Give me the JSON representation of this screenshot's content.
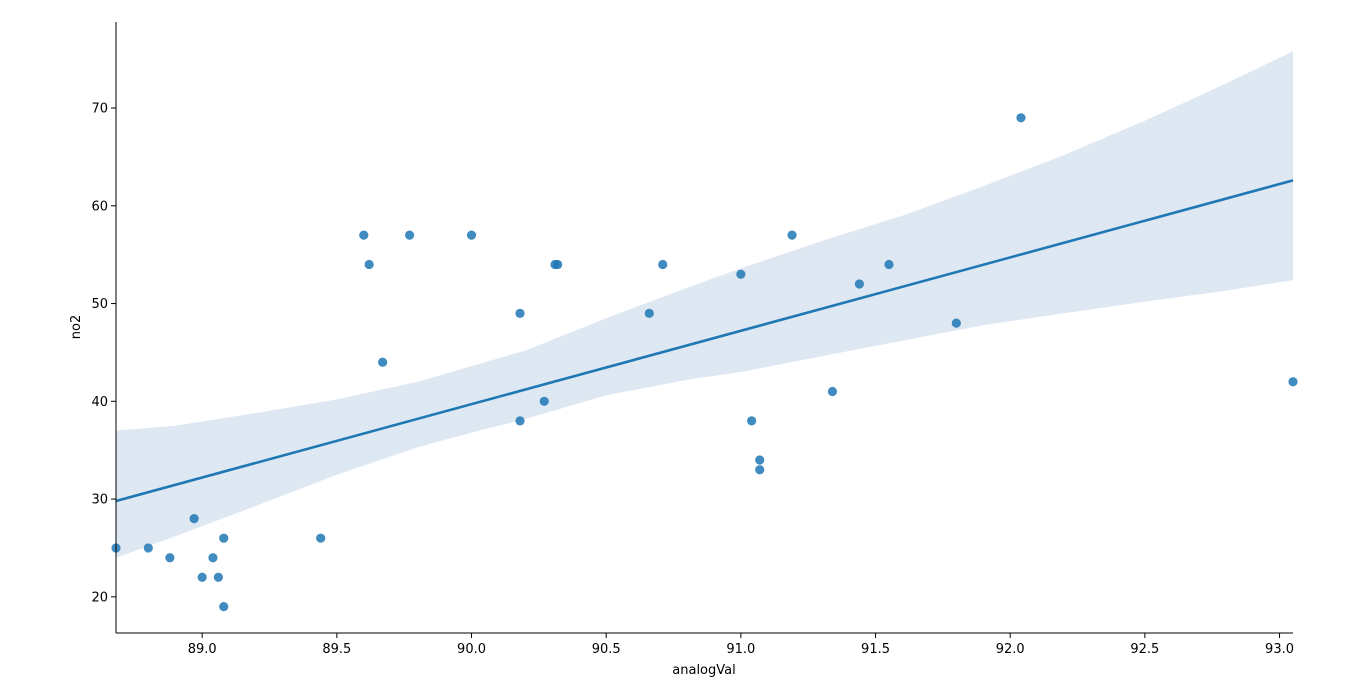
{
  "chart_data": {
    "type": "scatter",
    "title": "",
    "xlabel": "analogVal",
    "ylabel": "no2",
    "xlim": [
      88.68,
      93.05
    ],
    "ylim": [
      16.3,
      78.8
    ],
    "x_ticks": [
      "89.0",
      "89.5",
      "90.0",
      "90.5",
      "91.0",
      "91.5",
      "92.0",
      "92.5",
      "93.0"
    ],
    "x_tick_values": [
      89.0,
      89.5,
      90.0,
      90.5,
      91.0,
      91.5,
      92.0,
      92.5,
      93.0
    ],
    "y_ticks": [
      "20",
      "30",
      "40",
      "50",
      "60",
      "70"
    ],
    "y_tick_values": [
      20,
      30,
      40,
      50,
      60,
      70
    ],
    "grid": false,
    "colors": {
      "points": "#1f77b4",
      "line": "#1f77b4",
      "band": "#dde8f3"
    },
    "points": [
      {
        "x": 88.68,
        "y": 25
      },
      {
        "x": 88.8,
        "y": 25
      },
      {
        "x": 88.88,
        "y": 24
      },
      {
        "x": 88.97,
        "y": 28
      },
      {
        "x": 89.0,
        "y": 22
      },
      {
        "x": 89.04,
        "y": 24
      },
      {
        "x": 89.06,
        "y": 22
      },
      {
        "x": 89.08,
        "y": 19
      },
      {
        "x": 89.08,
        "y": 26
      },
      {
        "x": 89.44,
        "y": 26
      },
      {
        "x": 89.6,
        "y": 57
      },
      {
        "x": 89.62,
        "y": 54
      },
      {
        "x": 89.67,
        "y": 44
      },
      {
        "x": 89.77,
        "y": 57
      },
      {
        "x": 90.0,
        "y": 57
      },
      {
        "x": 90.18,
        "y": 49
      },
      {
        "x": 90.18,
        "y": 38
      },
      {
        "x": 90.27,
        "y": 40
      },
      {
        "x": 90.31,
        "y": 54
      },
      {
        "x": 90.32,
        "y": 54
      },
      {
        "x": 90.66,
        "y": 49
      },
      {
        "x": 90.71,
        "y": 54
      },
      {
        "x": 91.0,
        "y": 53
      },
      {
        "x": 91.04,
        "y": 38
      },
      {
        "x": 91.07,
        "y": 33
      },
      {
        "x": 91.07,
        "y": 34
      },
      {
        "x": 91.19,
        "y": 57
      },
      {
        "x": 91.34,
        "y": 41
      },
      {
        "x": 91.44,
        "y": 52
      },
      {
        "x": 91.55,
        "y": 54
      },
      {
        "x": 91.8,
        "y": 48
      },
      {
        "x": 92.04,
        "y": 69
      },
      {
        "x": 93.05,
        "y": 42
      }
    ],
    "regression": {
      "x": [
        88.68,
        93.05
      ],
      "y": [
        29.8,
        62.6
      ]
    },
    "confidence_band": {
      "x": [
        88.68,
        88.9,
        89.2,
        89.5,
        89.8,
        90.0,
        90.2,
        90.5,
        90.8,
        91.0,
        91.3,
        91.6,
        91.9,
        92.2,
        92.5,
        92.8,
        93.05
      ],
      "upper": [
        37.0,
        37.5,
        38.8,
        40.2,
        42.0,
        43.6,
        45.2,
        48.5,
        51.6,
        53.6,
        56.4,
        59.0,
        62.0,
        65.2,
        68.7,
        72.5,
        75.8
      ],
      "lower": [
        24.0,
        26.2,
        29.3,
        32.5,
        35.3,
        36.8,
        38.2,
        40.6,
        42.2,
        43.0,
        44.6,
        46.2,
        47.8,
        49.0,
        50.2,
        51.3,
        52.4
      ]
    }
  }
}
